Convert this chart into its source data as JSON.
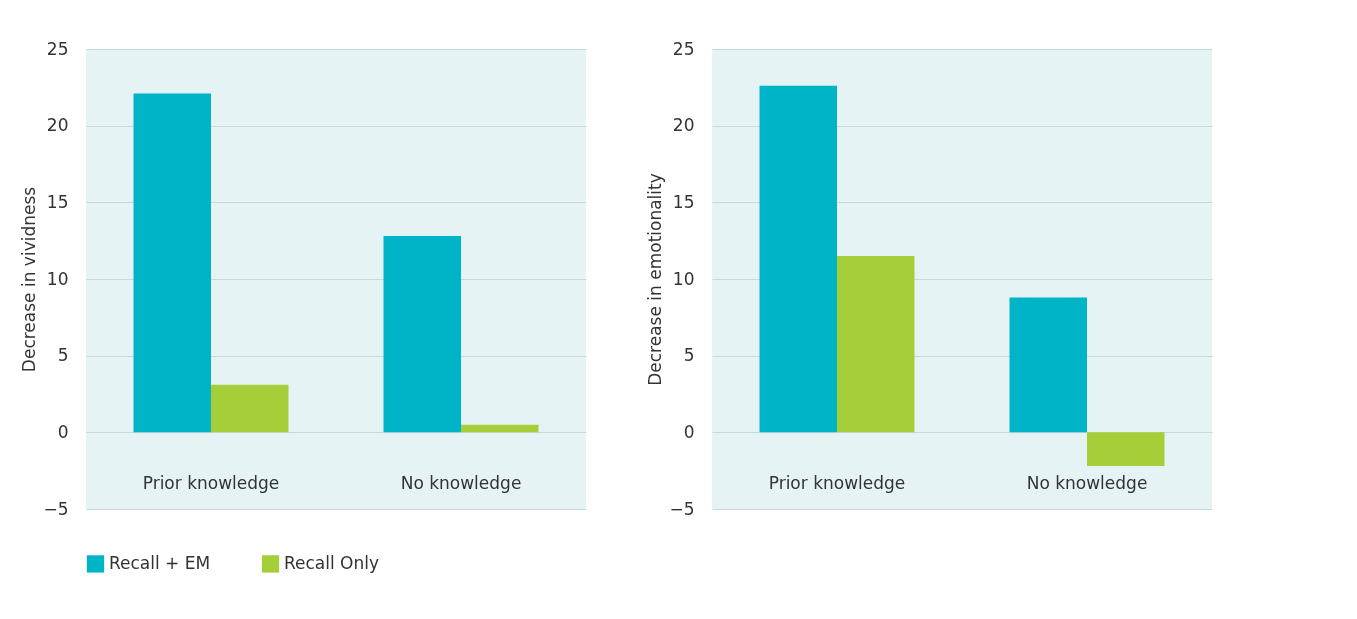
{
  "chart_data": [
    {
      "type": "bar",
      "categories": [
        "Prior knowledge",
        "No knowledge"
      ],
      "ylabel": "Decrease in vividness",
      "ylim": [
        -5,
        25
      ],
      "yticks": [
        -5,
        0,
        5,
        10,
        15,
        20,
        25
      ],
      "grid": "y",
      "legend": "bottom left",
      "series": [
        {
          "name": "Recall + EM",
          "color": "#00b4c8",
          "values": [
            22.1,
            12.8
          ]
        },
        {
          "name": "Recall Only",
          "color": "#a6ce39",
          "values": [
            3.1,
            0.5
          ]
        }
      ]
    },
    {
      "type": "bar",
      "categories": [
        "Prior knowledge",
        "No knowledge"
      ],
      "ylabel": "Decrease in emotionality",
      "ylim": [
        -5,
        25
      ],
      "yticks": [
        -5,
        0,
        5,
        10,
        15,
        20,
        25
      ],
      "grid": "y",
      "legend": false,
      "series": [
        {
          "name": "Recall + EM",
          "color": "#00b4c8",
          "values": [
            22.6,
            8.8
          ]
        },
        {
          "name": "Recall Only",
          "color": "#a6ce39",
          "values": [
            11.5,
            -2.2
          ]
        }
      ]
    }
  ]
}
